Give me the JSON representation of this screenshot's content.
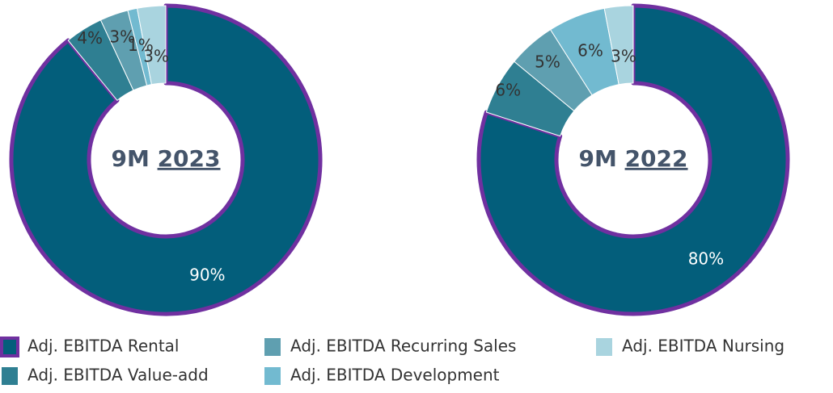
{
  "chart_data": [
    {
      "type": "pie",
      "title": "9M",
      "year": "2023",
      "categories": [
        "Adj. EBITDA Rental",
        "Adj. EBITDA Value-add",
        "Adj. EBITDA Recurring Sales",
        "Adj. EBITDA Development",
        "Adj. EBITDA Nursing"
      ],
      "values": [
        90,
        4,
        3,
        1,
        3
      ],
      "value_labels": [
        "90%",
        "4%",
        "3%",
        "1%",
        "3%"
      ],
      "colors": [
        "#035e7b",
        "#2f7f92",
        "#5f9fb0",
        "#72bad0",
        "#a9d4df"
      ],
      "highlight_color": "#7030a0"
    },
    {
      "type": "pie",
      "title": "9M",
      "year": "2022",
      "categories": [
        "Adj. EBITDA Rental",
        "Adj. EBITDA Value-add",
        "Adj. EBITDA Recurring Sales",
        "Adj. EBITDA Development",
        "Adj. EBITDA Nursing"
      ],
      "values": [
        80,
        6,
        5,
        6,
        3
      ],
      "value_labels": [
        "80%",
        "6%",
        "5%",
        "6%",
        "3%"
      ],
      "colors": [
        "#035e7b",
        "#2f7f92",
        "#5f9fb0",
        "#72bad0",
        "#a9d4df"
      ],
      "highlight_color": "#7030a0"
    }
  ]
}
